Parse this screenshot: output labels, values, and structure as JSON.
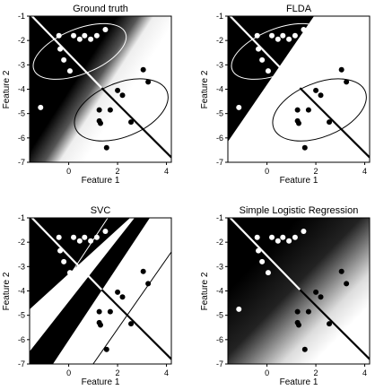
{
  "chart_data": [
    {
      "type": "scatter",
      "title": "Ground truth",
      "xlabel": "Feature 1",
      "ylabel": "Feature 2",
      "xlim": [
        -1.6,
        4.2
      ],
      "ylim": [
        -7,
        -1
      ],
      "xticks": [
        "0",
        "2",
        "4"
      ],
      "yticks": [
        "-1",
        "-2",
        "-3",
        "-4",
        "-5",
        "-6",
        "-7"
      ],
      "background": "soft-diagonal",
      "ellipses": true,
      "boundary": "line"
    },
    {
      "type": "scatter",
      "title": "FLDA",
      "xlabel": "Feature 1",
      "ylabel": "Feature 2",
      "xlim": [
        -1.6,
        4.2
      ],
      "ylim": [
        -7,
        -1
      ],
      "xticks": [
        "0",
        "2",
        "4"
      ],
      "yticks": [
        "-1",
        "-2",
        "-3",
        "-4",
        "-5",
        "-6",
        "-7"
      ],
      "background": "hard-diagonal",
      "ellipses": true,
      "boundary": "line"
    },
    {
      "type": "scatter",
      "title": "SVC",
      "xlabel": "Feature 1",
      "ylabel": "Feature 2",
      "xlim": [
        -1.6,
        4.2
      ],
      "ylim": [
        -7,
        -1
      ],
      "xticks": [
        "0",
        "2",
        "4"
      ],
      "yticks": [
        "-1",
        "-2",
        "-3",
        "-4",
        "-5",
        "-6",
        "-7"
      ],
      "background": "margin-band",
      "ellipses": false,
      "boundary": "line"
    },
    {
      "type": "scatter",
      "title": "Simple Logistic Regression",
      "xlabel": "Feature 1",
      "ylabel": "Feature 2",
      "xlim": [
        -1.6,
        4.2
      ],
      "ylim": [
        -7,
        -1
      ],
      "xticks": [
        "0",
        "2",
        "4"
      ],
      "yticks": [
        "-1",
        "-2",
        "-3",
        "-4",
        "-5",
        "-6",
        "-7"
      ],
      "background": "gradient",
      "ellipses": false,
      "boundary": "line"
    }
  ],
  "points": {
    "class_white": [
      [
        -0.4,
        -1.8
      ],
      [
        -0.35,
        -2.35
      ],
      [
        -0.2,
        -2.8
      ],
      [
        0.05,
        -3.25
      ],
      [
        0.2,
        -1.8
      ],
      [
        0.45,
        -1.95
      ],
      [
        0.65,
        -1.8
      ],
      [
        0.9,
        -1.95
      ],
      [
        1.15,
        -1.8
      ],
      [
        1.5,
        -1.55
      ]
    ],
    "class_black": [
      [
        1.25,
        -4.85
      ],
      [
        1.25,
        -5.3
      ],
      [
        1.3,
        -5.4
      ],
      [
        1.55,
        -6.4
      ],
      [
        1.7,
        -4.85
      ],
      [
        2.0,
        -4.05
      ],
      [
        2.2,
        -4.25
      ],
      [
        2.55,
        -5.35
      ],
      [
        3.05,
        -3.2
      ],
      [
        3.25,
        -3.7
      ]
    ],
    "outlier_white": [
      -1.15,
      -4.75
    ]
  },
  "colors": {
    "black": "#000000",
    "white": "#ffffff"
  }
}
